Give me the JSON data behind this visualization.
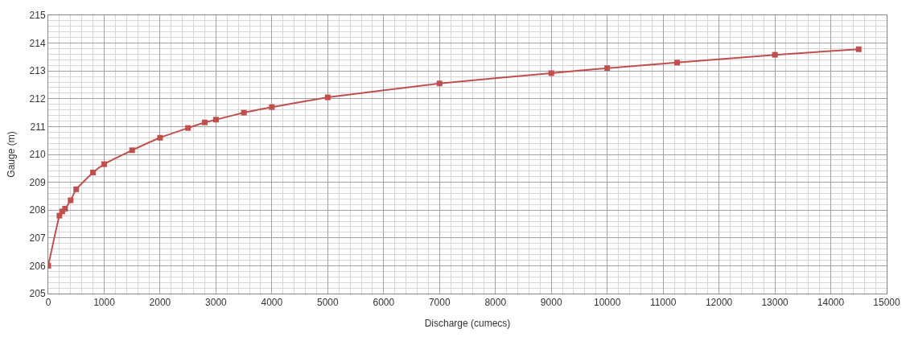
{
  "chart_data": {
    "type": "line",
    "xlabel": "Discharge (cumecs)",
    "ylabel": "Gauge (m)",
    "x": [
      0,
      200,
      250,
      300,
      400,
      500,
      800,
      1000,
      1500,
      2000,
      2500,
      2800,
      3000,
      3500,
      4000,
      5000,
      7000,
      9000,
      10000,
      11250,
      13000,
      14500
    ],
    "series": [
      {
        "color": "#c0504d",
        "values": [
          206.0,
          207.8,
          207.95,
          208.05,
          208.35,
          208.75,
          209.35,
          209.65,
          210.15,
          210.6,
          210.95,
          211.15,
          211.25,
          211.5,
          211.7,
          212.05,
          212.55,
          212.92,
          213.1,
          213.3,
          213.58,
          213.78
        ]
      }
    ],
    "xlim": [
      0,
      15000
    ],
    "xticks": [
      0,
      1000,
      2000,
      3000,
      4000,
      5000,
      6000,
      7000,
      8000,
      9000,
      10000,
      11000,
      12000,
      13000,
      14000,
      15000
    ],
    "ylim": [
      205,
      215
    ],
    "yticks": [
      205,
      206,
      207,
      208,
      209,
      210,
      211,
      212,
      213,
      214,
      215
    ],
    "grid": true,
    "marker": "square",
    "line_style": "solid",
    "legend": false
  }
}
